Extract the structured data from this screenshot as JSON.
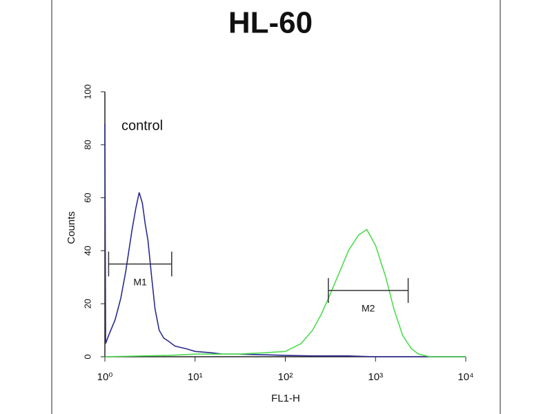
{
  "chart_data": {
    "type": "line",
    "title": "HL-60",
    "xlabel": "FL1-H",
    "ylabel": "Counts",
    "annotation": "control",
    "xscale": "log",
    "xlim": [
      1,
      10000
    ],
    "xticks": [
      {
        "value": 1,
        "label": "10⁰"
      },
      {
        "value": 10,
        "label": "10¹"
      },
      {
        "value": 100,
        "label": "10²"
      },
      {
        "value": 1000,
        "label": "10³"
      },
      {
        "value": 10000,
        "label": "10⁴"
      }
    ],
    "ylim": [
      0,
      100
    ],
    "yticks": [
      0,
      20,
      40,
      60,
      80,
      100
    ],
    "series": [
      {
        "name": "control",
        "color": "#2a2a8f",
        "x": [
          1,
          1.02,
          1.1,
          1.3,
          1.5,
          1.7,
          2,
          2.2,
          2.4,
          2.6,
          2.8,
          3,
          3.3,
          3.6,
          4,
          4.5,
          5,
          6,
          8,
          10,
          15,
          20,
          30,
          50,
          100,
          200,
          500,
          1000,
          3000,
          10000
        ],
        "values": [
          88,
          5,
          8,
          14,
          22,
          32,
          48,
          56,
          62,
          58,
          50,
          44,
          30,
          18,
          10,
          7,
          6,
          4,
          3,
          2,
          1.5,
          1,
          1,
          0.8,
          0.5,
          0.3,
          0.3,
          0,
          0,
          0
        ]
      },
      {
        "name": "HL-60",
        "color": "#4ddc4d",
        "x": [
          1,
          5,
          10,
          30,
          60,
          100,
          150,
          200,
          250,
          300,
          400,
          500,
          650,
          800,
          1000,
          1300,
          1600,
          2000,
          2500,
          3000,
          4000,
          10000
        ],
        "values": [
          0,
          0.5,
          1,
          1,
          1.5,
          2,
          5,
          10,
          16,
          22,
          32,
          40,
          46,
          48,
          42,
          30,
          18,
          8,
          3,
          1,
          0,
          0
        ]
      }
    ],
    "markers": [
      {
        "label": "M1",
        "x": [
          1.1,
          5.5
        ],
        "y": 35
      },
      {
        "label": "M2",
        "x": [
          300,
          2300
        ],
        "y": 25
      }
    ]
  }
}
